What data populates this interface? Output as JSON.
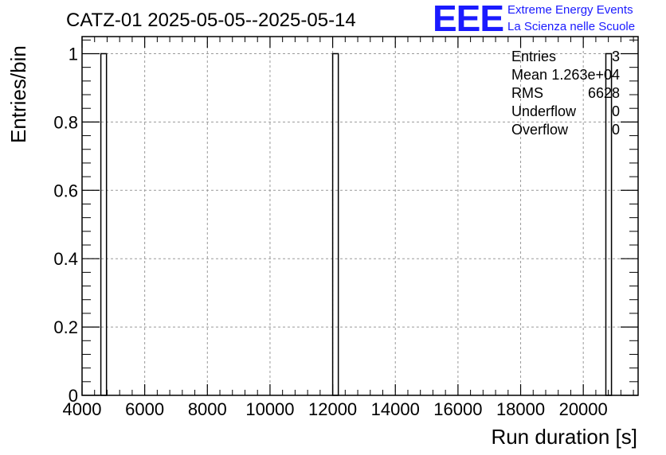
{
  "logo": {
    "mark": "EEE",
    "line1": "Extreme Energy Events",
    "line2": "La Scienza nelle Scuole"
  },
  "colors": {
    "frame": "#000000",
    "grid": "#9a9a9a",
    "logo": "#1a1aff"
  },
  "chart_data": {
    "type": "bar",
    "title": "CATZ-01 2025-05-05--2025-05-14",
    "xlabel": "Run duration [s]",
    "ylabel": "Entries/bin",
    "xlim": [
      4000,
      21750
    ],
    "ylim": [
      0,
      1.05
    ],
    "xticks": [
      4000,
      6000,
      8000,
      10000,
      12000,
      14000,
      16000,
      18000,
      20000
    ],
    "yticks": [
      0,
      0.2,
      0.4,
      0.6,
      0.8,
      1
    ],
    "xtick_labels": [
      "4000",
      "6000",
      "8000",
      "10000",
      "12000",
      "14000",
      "16000",
      "18000",
      "20000"
    ],
    "ytick_labels": [
      "0",
      "0.2",
      "0.4",
      "0.6",
      "0.8",
      "1"
    ],
    "grid": true,
    "bins": [
      {
        "x0": 4600,
        "x1": 4780,
        "value": 1
      },
      {
        "x0": 12000,
        "x1": 12180,
        "value": 1
      },
      {
        "x0": 20720,
        "x1": 20900,
        "value": 1
      }
    ],
    "stats": [
      {
        "label": "Entries",
        "value": "3"
      },
      {
        "label": "Mean",
        "value": "1.263e+04"
      },
      {
        "label": "RMS",
        "value": "6628"
      },
      {
        "label": "Underflow",
        "value": "0"
      },
      {
        "label": "Overflow",
        "value": "0"
      }
    ]
  }
}
